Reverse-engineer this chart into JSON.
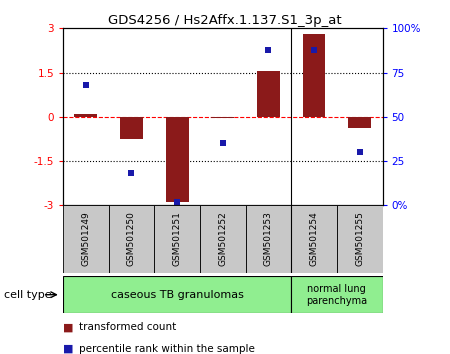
{
  "title": "GDS4256 / Hs2Affx.1.137.S1_3p_at",
  "samples": [
    "GSM501249",
    "GSM501250",
    "GSM501251",
    "GSM501252",
    "GSM501253",
    "GSM501254",
    "GSM501255"
  ],
  "transformed_count": [
    0.1,
    -0.75,
    -2.9,
    -0.05,
    1.55,
    2.8,
    -0.38
  ],
  "percentile_rank": [
    68,
    18,
    2,
    35,
    88,
    88,
    30
  ],
  "ylim_left": [
    -3,
    3
  ],
  "yticks_left": [
    -3,
    -1.5,
    0,
    1.5,
    3
  ],
  "ytick_labels_left": [
    "-3",
    "-1.5",
    "0",
    "1.5",
    "3"
  ],
  "ytick_labels_right": [
    "0%",
    "25",
    "50",
    "75",
    "100%"
  ],
  "yticks_right": [
    0,
    25,
    50,
    75,
    100
  ],
  "bar_color": "#8B1A1A",
  "scatter_color": "#1919AA",
  "group1_label": "caseous TB granulomas",
  "group2_label": "normal lung\nparenchyma",
  "group1_samples": 5,
  "group2_samples": 2,
  "cell_type_label": "cell type",
  "legend_bar_label": "transformed count",
  "legend_scatter_label": "percentile rank within the sample",
  "bar_width": 0.5,
  "group_color": "#90EE90",
  "sample_box_color": "#C8C8C8",
  "scatter_size": 25
}
